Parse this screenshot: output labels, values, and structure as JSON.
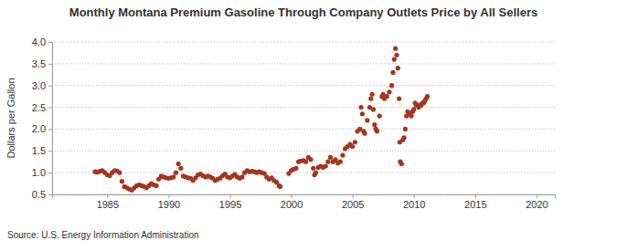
{
  "chart_data": {
    "type": "scatter",
    "title": "Monthly Montana Premium Gasoline Through Company Outlets Price by All Sellers",
    "y_label": "Dollars per Gallon",
    "source": "Source: U.S. Energy Information Administration",
    "x": [
      1984.0,
      1984.2,
      1984.4,
      1984.6,
      1984.8,
      1985.0,
      1985.2,
      1985.4,
      1985.6,
      1985.8,
      1986.0,
      1986.2,
      1986.4,
      1986.6,
      1986.8,
      1987.0,
      1987.2,
      1987.4,
      1987.6,
      1987.8,
      1988.0,
      1988.2,
      1988.4,
      1988.6,
      1988.8,
      1989.0,
      1989.2,
      1989.4,
      1989.6,
      1989.8,
      1990.0,
      1990.2,
      1990.4,
      1990.6,
      1990.8,
      1991.0,
      1991.2,
      1991.4,
      1991.6,
      1991.8,
      1992.0,
      1992.2,
      1992.4,
      1992.6,
      1992.8,
      1993.0,
      1993.2,
      1993.4,
      1993.6,
      1993.8,
      1994.0,
      1994.2,
      1994.4,
      1994.6,
      1994.8,
      1995.0,
      1995.2,
      1995.4,
      1995.6,
      1995.8,
      1996.0,
      1996.2,
      1996.4,
      1996.6,
      1996.8,
      1997.0,
      1997.2,
      1997.4,
      1997.6,
      1997.8,
      1998.0,
      1998.2,
      1998.4,
      1998.6,
      1998.8,
      1999.0,
      1999.1,
      1999.8,
      2000.0,
      2000.2,
      2000.4,
      2000.6,
      2000.8,
      2001.0,
      2001.2,
      2001.4,
      2001.6,
      2001.8,
      2001.9,
      2002.0,
      2002.2,
      2002.4,
      2002.6,
      2002.8,
      2003.0,
      2003.2,
      2003.4,
      2003.6,
      2003.8,
      2004.0,
      2004.2,
      2004.4,
      2004.6,
      2004.8,
      2005.0,
      2005.2,
      2005.4,
      2005.6,
      2005.7,
      2005.8,
      2005.9,
      2006.0,
      2006.2,
      2006.4,
      2006.5,
      2006.6,
      2006.7,
      2006.8,
      2006.9,
      2007.0,
      2007.2,
      2007.4,
      2007.5,
      2007.6,
      2007.8,
      2008.0,
      2008.2,
      2008.3,
      2008.4,
      2008.5,
      2008.6,
      2008.7,
      2008.8,
      2008.85,
      2008.9,
      2009.0,
      2009.1,
      2009.2,
      2009.3,
      2009.4,
      2009.5,
      2009.6,
      2009.7,
      2009.8,
      2009.9,
      2010.0,
      2010.1,
      2010.2,
      2010.3,
      2010.4,
      2010.5,
      2010.6,
      2010.7,
      2010.8,
      2010.9,
      2011.0,
      2011.1
    ],
    "values": [
      1.02,
      1.01,
      1.03,
      1.05,
      1.0,
      0.95,
      0.93,
      1.0,
      1.05,
      1.04,
      1.0,
      0.8,
      0.68,
      0.65,
      0.62,
      0.6,
      0.65,
      0.7,
      0.72,
      0.7,
      0.68,
      0.65,
      0.7,
      0.75,
      0.72,
      0.7,
      0.85,
      0.92,
      0.9,
      0.88,
      0.87,
      0.88,
      0.9,
      1.0,
      1.2,
      1.1,
      0.92,
      0.9,
      0.88,
      0.87,
      0.82,
      0.88,
      0.95,
      0.97,
      0.93,
      0.9,
      0.92,
      0.9,
      0.87,
      0.82,
      0.85,
      0.87,
      0.93,
      0.97,
      0.9,
      0.88,
      0.92,
      0.96,
      0.9,
      0.87,
      0.9,
      1.0,
      1.05,
      1.02,
      1.03,
      1.02,
      1.0,
      1.02,
      1.0,
      0.98,
      0.9,
      0.85,
      0.88,
      0.82,
      0.78,
      0.7,
      0.68,
      0.98,
      1.05,
      1.08,
      1.1,
      1.25,
      1.27,
      1.28,
      1.25,
      1.35,
      1.3,
      1.1,
      0.95,
      1.0,
      1.12,
      1.15,
      1.12,
      1.15,
      1.25,
      1.35,
      1.25,
      1.3,
      1.22,
      1.25,
      1.4,
      1.55,
      1.6,
      1.65,
      1.6,
      1.7,
      1.95,
      2.0,
      2.5,
      2.35,
      1.95,
      1.9,
      2.2,
      2.5,
      2.7,
      2.8,
      2.45,
      2.1,
      2.0,
      1.95,
      2.3,
      2.75,
      2.8,
      2.7,
      2.75,
      2.85,
      3.0,
      3.3,
      3.6,
      3.85,
      3.7,
      3.4,
      2.7,
      1.7,
      1.25,
      1.2,
      1.75,
      1.8,
      2.0,
      2.3,
      2.4,
      2.35,
      2.35,
      2.3,
      2.4,
      2.45,
      2.6,
      2.55,
      2.55,
      2.5,
      2.55,
      2.55,
      2.6,
      2.6,
      2.65,
      2.7,
      2.75
    ],
    "color": "#a3361f",
    "marker": "circle",
    "xlim": [
      1980.5,
      2021.5
    ],
    "xticks": [
      1985,
      1990,
      1995,
      2000,
      2005,
      2010,
      2015,
      2020
    ],
    "ylim": [
      0.5,
      4.0
    ],
    "yticks": [
      0.5,
      {
        "value": 1.0,
        "label": "1.0"
      },
      1.5,
      {
        "value": 2.0,
        "label": "2.0"
      },
      2.5,
      {
        "value": 3.0,
        "label": "3.0"
      },
      3.5,
      {
        "value": 4.0,
        "label": "4.0"
      }
    ],
    "grid": true
  }
}
